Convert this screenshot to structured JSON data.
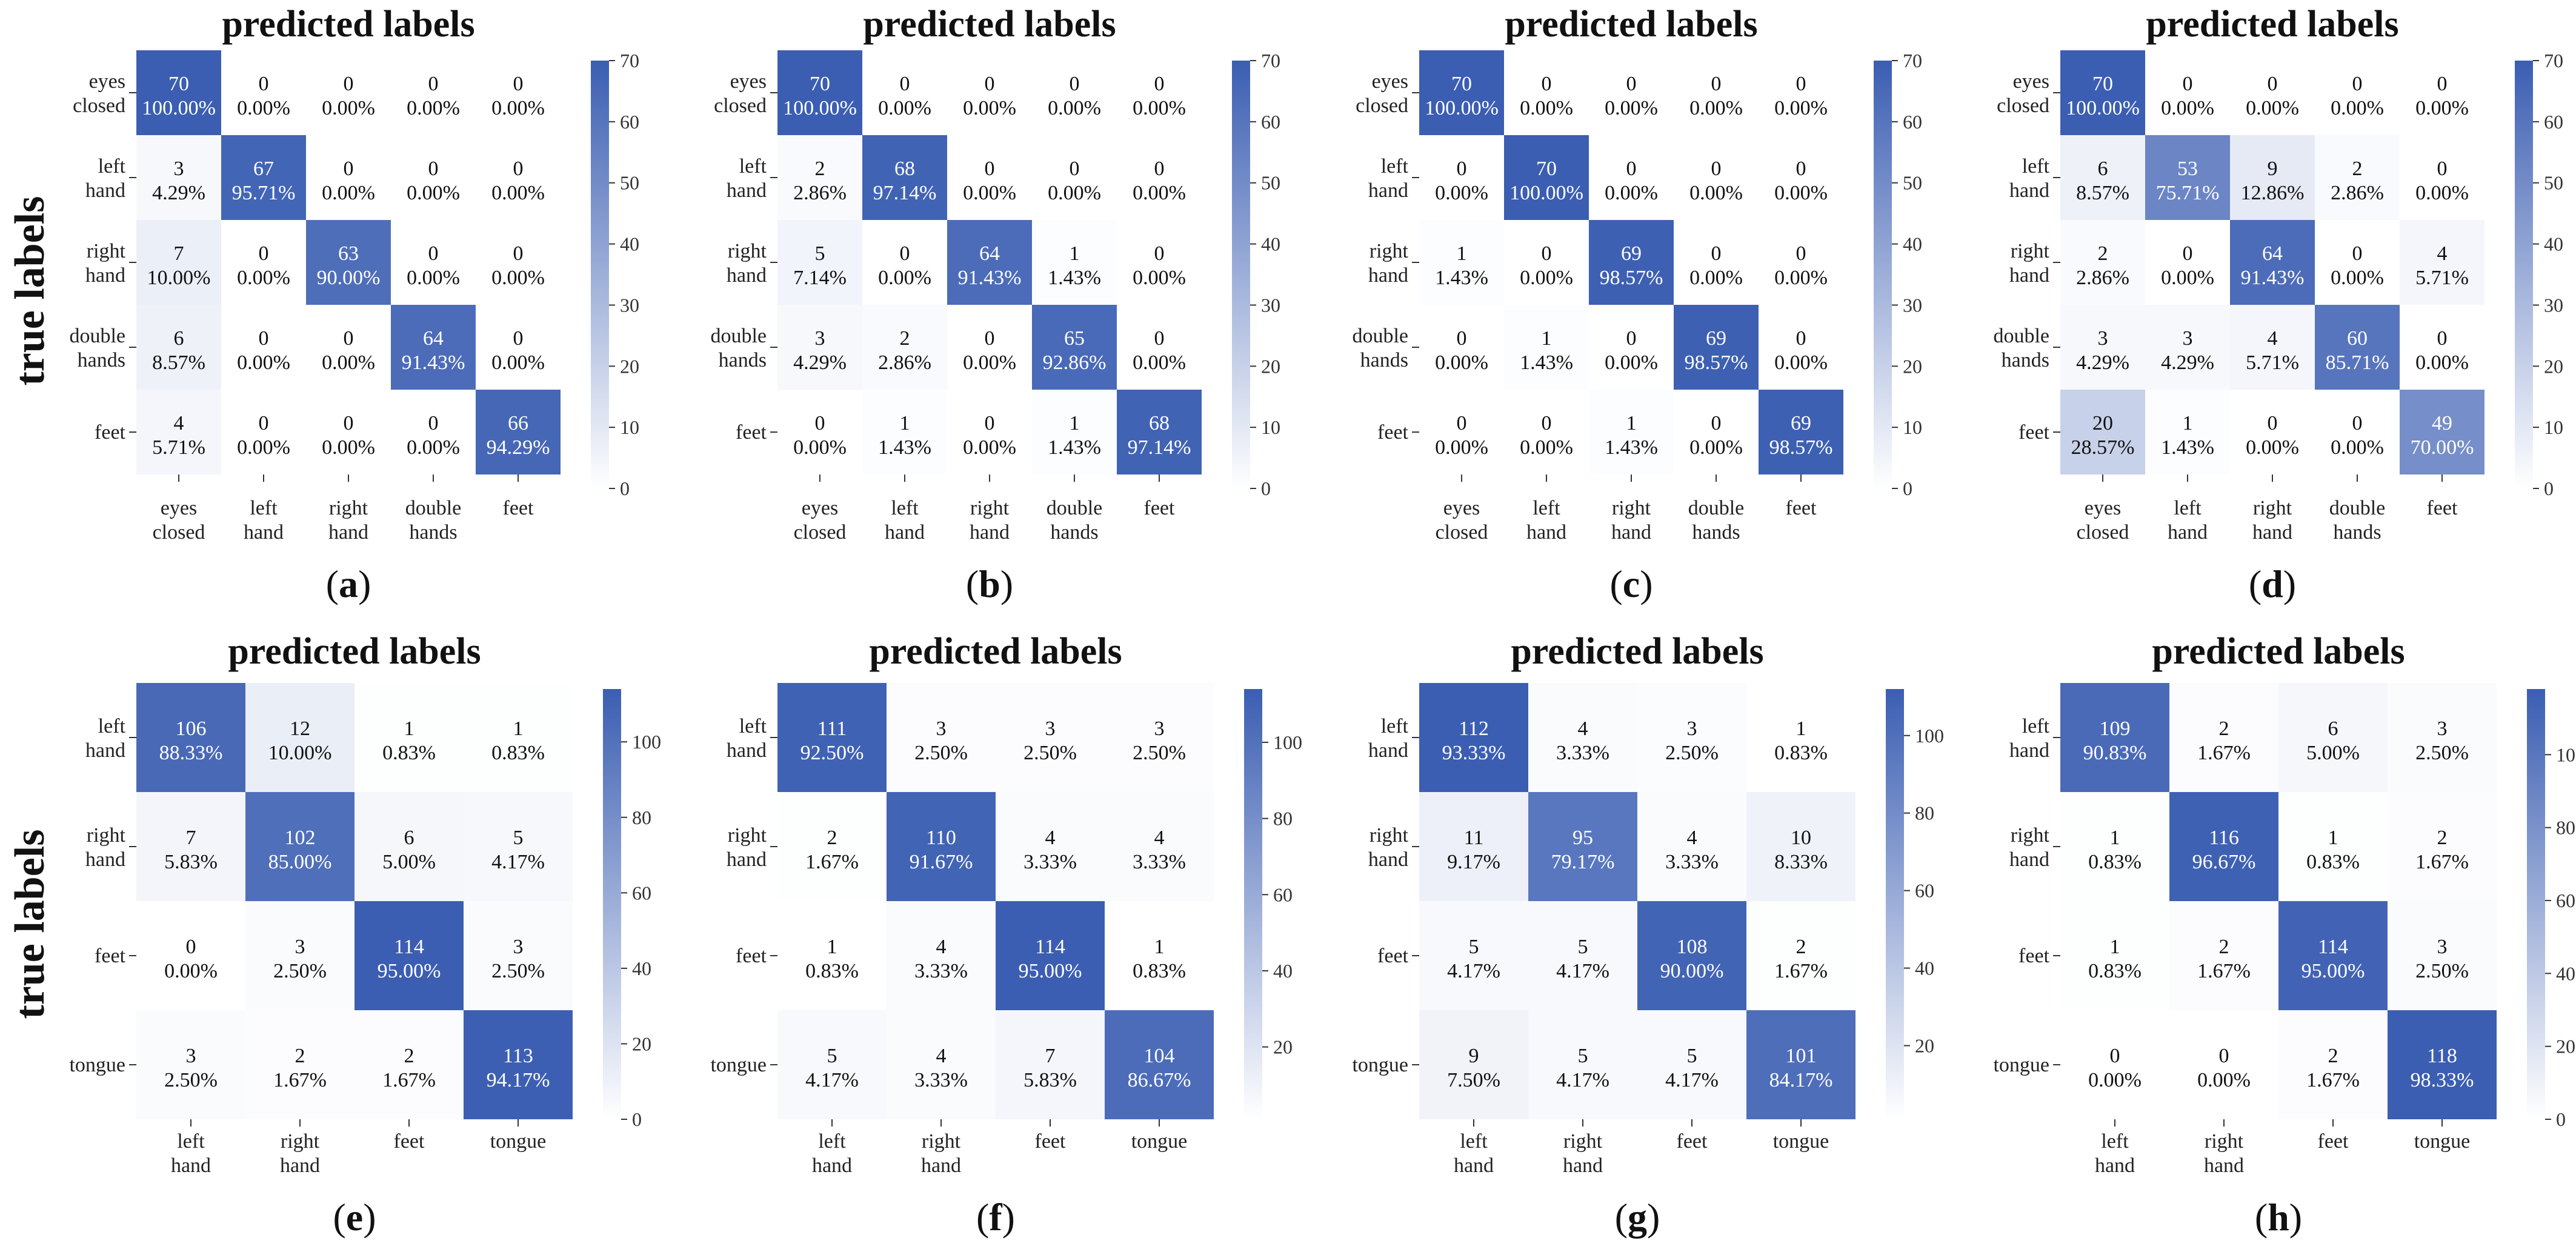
{
  "figure": {
    "ylabel_top": "true labels",
    "ylabel_bottom": "true labels"
  },
  "chart_data": [
    {
      "type": "heatmap",
      "panel": "(a)",
      "title": "predicted labels",
      "classes": [
        "eyes closed",
        "left hand",
        "right hand",
        "double hands",
        "feet"
      ],
      "counts": [
        [
          70,
          0,
          0,
          0,
          0
        ],
        [
          3,
          67,
          0,
          0,
          0
        ],
        [
          7,
          0,
          63,
          0,
          0
        ],
        [
          6,
          0,
          0,
          64,
          0
        ],
        [
          4,
          0,
          0,
          0,
          66
        ]
      ],
      "percents": [
        [
          "100.00%",
          "0.00%",
          "0.00%",
          "0.00%",
          "0.00%"
        ],
        [
          "4.29%",
          "95.71%",
          "0.00%",
          "0.00%",
          "0.00%"
        ],
        [
          "10.00%",
          "0.00%",
          "90.00%",
          "0.00%",
          "0.00%"
        ],
        [
          "8.57%",
          "0.00%",
          "0.00%",
          "91.43%",
          "0.00%"
        ],
        [
          "5.71%",
          "0.00%",
          "0.00%",
          "0.00%",
          "94.29%"
        ]
      ],
      "colorbar": {
        "min": 0,
        "max": 70,
        "ticks": [
          0,
          10,
          20,
          30,
          40,
          50,
          60,
          70
        ]
      }
    },
    {
      "type": "heatmap",
      "panel": "(b)",
      "title": "predicted labels",
      "classes": [
        "eyes closed",
        "left hand",
        "right hand",
        "double hands",
        "feet"
      ],
      "counts": [
        [
          70,
          0,
          0,
          0,
          0
        ],
        [
          2,
          68,
          0,
          0,
          0
        ],
        [
          5,
          0,
          64,
          1,
          0
        ],
        [
          3,
          2,
          0,
          65,
          0
        ],
        [
          0,
          1,
          0,
          1,
          68
        ]
      ],
      "percents": [
        [
          "100.00%",
          "0.00%",
          "0.00%",
          "0.00%",
          "0.00%"
        ],
        [
          "2.86%",
          "97.14%",
          "0.00%",
          "0.00%",
          "0.00%"
        ],
        [
          "7.14%",
          "0.00%",
          "91.43%",
          "1.43%",
          "0.00%"
        ],
        [
          "4.29%",
          "2.86%",
          "0.00%",
          "92.86%",
          "0.00%"
        ],
        [
          "0.00%",
          "1.43%",
          "0.00%",
          "1.43%",
          "97.14%"
        ]
      ],
      "colorbar": {
        "min": 0,
        "max": 70,
        "ticks": [
          0,
          10,
          20,
          30,
          40,
          50,
          60,
          70
        ]
      }
    },
    {
      "type": "heatmap",
      "panel": "(c)",
      "title": "predicted labels",
      "classes": [
        "eyes closed",
        "left hand",
        "right hand",
        "double hands",
        "feet"
      ],
      "counts": [
        [
          70,
          0,
          0,
          0,
          0
        ],
        [
          0,
          70,
          0,
          0,
          0
        ],
        [
          1,
          0,
          69,
          0,
          0
        ],
        [
          0,
          1,
          0,
          69,
          0
        ],
        [
          0,
          0,
          1,
          0,
          69
        ]
      ],
      "percents": [
        [
          "100.00%",
          "0.00%",
          "0.00%",
          "0.00%",
          "0.00%"
        ],
        [
          "0.00%",
          "100.00%",
          "0.00%",
          "0.00%",
          "0.00%"
        ],
        [
          "1.43%",
          "0.00%",
          "98.57%",
          "0.00%",
          "0.00%"
        ],
        [
          "0.00%",
          "1.43%",
          "0.00%",
          "98.57%",
          "0.00%"
        ],
        [
          "0.00%",
          "0.00%",
          "1.43%",
          "0.00%",
          "98.57%"
        ]
      ],
      "colorbar": {
        "min": 0,
        "max": 70,
        "ticks": [
          0,
          10,
          20,
          30,
          40,
          50,
          60,
          70
        ]
      }
    },
    {
      "type": "heatmap",
      "panel": "(d)",
      "title": "predicted labels",
      "classes": [
        "eyes closed",
        "left hand",
        "right hand",
        "double hands",
        "feet"
      ],
      "counts": [
        [
          70,
          0,
          0,
          0,
          0
        ],
        [
          6,
          53,
          9,
          2,
          0
        ],
        [
          2,
          0,
          64,
          0,
          4
        ],
        [
          3,
          3,
          4,
          60,
          0
        ],
        [
          20,
          1,
          0,
          0,
          49
        ]
      ],
      "percents": [
        [
          "100.00%",
          "0.00%",
          "0.00%",
          "0.00%",
          "0.00%"
        ],
        [
          "8.57%",
          "75.71%",
          "12.86%",
          "2.86%",
          "0.00%"
        ],
        [
          "2.86%",
          "0.00%",
          "91.43%",
          "0.00%",
          "5.71%"
        ],
        [
          "4.29%",
          "4.29%",
          "5.71%",
          "85.71%",
          "0.00%"
        ],
        [
          "28.57%",
          "1.43%",
          "0.00%",
          "0.00%",
          "70.00%"
        ]
      ],
      "colorbar": {
        "min": 0,
        "max": 70,
        "ticks": [
          0,
          10,
          20,
          30,
          40,
          50,
          60,
          70
        ]
      }
    },
    {
      "type": "heatmap",
      "panel": "(e)",
      "title": "predicted labels",
      "classes": [
        "left hand",
        "right hand",
        "feet",
        "tongue"
      ],
      "counts": [
        [
          106,
          12,
          1,
          1
        ],
        [
          7,
          102,
          6,
          5
        ],
        [
          0,
          3,
          114,
          3
        ],
        [
          3,
          2,
          2,
          113
        ]
      ],
      "percents": [
        [
          "88.33%",
          "10.00%",
          "0.83%",
          "0.83%"
        ],
        [
          "5.83%",
          "85.00%",
          "5.00%",
          "4.17%"
        ],
        [
          "0.00%",
          "2.50%",
          "95.00%",
          "2.50%"
        ],
        [
          "2.50%",
          "1.67%",
          "1.67%",
          "94.17%"
        ]
      ],
      "colorbar": {
        "min": 0,
        "max": 114,
        "ticks": [
          0,
          20,
          40,
          60,
          80,
          100
        ]
      }
    },
    {
      "type": "heatmap",
      "panel": "(f)",
      "title": "predicted labels",
      "classes": [
        "left hand",
        "right hand",
        "feet",
        "tongue"
      ],
      "counts": [
        [
          111,
          3,
          3,
          3
        ],
        [
          2,
          110,
          4,
          4
        ],
        [
          1,
          4,
          114,
          1
        ],
        [
          5,
          4,
          7,
          104
        ]
      ],
      "percents": [
        [
          "92.50%",
          "2.50%",
          "2.50%",
          "2.50%"
        ],
        [
          "1.67%",
          "91.67%",
          "3.33%",
          "3.33%"
        ],
        [
          "0.83%",
          "3.33%",
          "95.00%",
          "0.83%"
        ],
        [
          "4.17%",
          "3.33%",
          "5.83%",
          "86.67%"
        ]
      ],
      "colorbar": {
        "min": 1,
        "max": 114,
        "ticks": [
          20,
          40,
          60,
          80,
          100
        ]
      }
    },
    {
      "type": "heatmap",
      "panel": "(g)",
      "title": "predicted labels",
      "classes": [
        "left hand",
        "right hand",
        "feet",
        "tongue"
      ],
      "counts": [
        [
          112,
          4,
          3,
          1
        ],
        [
          11,
          95,
          4,
          10
        ],
        [
          5,
          5,
          108,
          2
        ],
        [
          9,
          5,
          5,
          101
        ]
      ],
      "percents": [
        [
          "93.33%",
          "3.33%",
          "2.50%",
          "0.83%"
        ],
        [
          "9.17%",
          "79.17%",
          "3.33%",
          "8.33%"
        ],
        [
          "4.17%",
          "4.17%",
          "90.00%",
          "1.67%"
        ],
        [
          "7.50%",
          "4.17%",
          "4.17%",
          "84.17%"
        ]
      ],
      "colorbar": {
        "min": 1,
        "max": 112,
        "ticks": [
          20,
          40,
          60,
          80,
          100
        ]
      }
    },
    {
      "type": "heatmap",
      "panel": "(h)",
      "title": "predicted labels",
      "classes": [
        "left hand",
        "right hand",
        "feet",
        "tongue"
      ],
      "counts": [
        [
          109,
          2,
          6,
          3
        ],
        [
          1,
          116,
          1,
          2
        ],
        [
          1,
          2,
          114,
          3
        ],
        [
          0,
          0,
          2,
          118
        ]
      ],
      "percents": [
        [
          "90.83%",
          "1.67%",
          "5.00%",
          "2.50%"
        ],
        [
          "0.83%",
          "96.67%",
          "0.83%",
          "1.67%"
        ],
        [
          "0.83%",
          "1.67%",
          "95.00%",
          "2.50%"
        ],
        [
          "0.00%",
          "0.00%",
          "1.67%",
          "98.33%"
        ]
      ],
      "colorbar": {
        "min": 0,
        "max": 118,
        "ticks": [
          0,
          20,
          40,
          60,
          80,
          100
        ]
      }
    }
  ]
}
